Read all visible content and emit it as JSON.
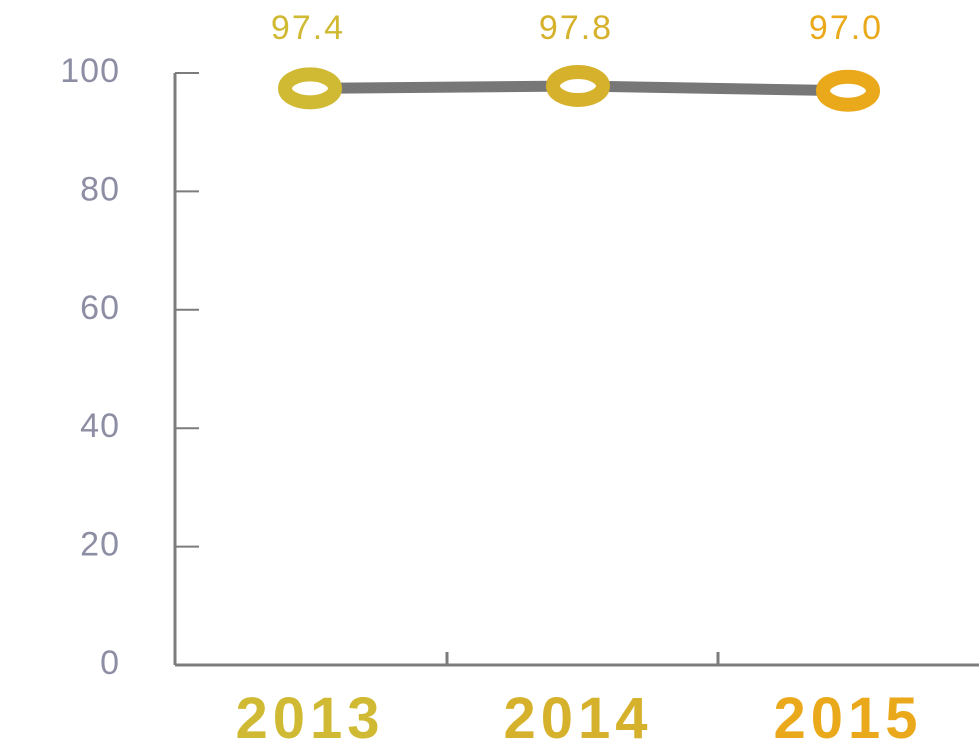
{
  "chart_data": {
    "type": "line",
    "categories": [
      "2013",
      "2014",
      "2015"
    ],
    "series": [
      {
        "values": [
          97.4,
          97.8,
          97.0
        ],
        "data_labels": [
          "97.4",
          "97.8",
          "97.0"
        ],
        "point_colors": [
          "#d0b933",
          "#d6b12c",
          "#eaa91b"
        ]
      }
    ],
    "y_ticks": [
      "0",
      "20",
      "40",
      "60",
      "80",
      "100"
    ],
    "ylim": [
      0,
      100
    ],
    "grid": false,
    "legend": "none",
    "title": "",
    "xlabel": "",
    "ylabel": "",
    "colors": {
      "axis": "#7c7c7c",
      "line": "#777777",
      "y_tick_text": "#8d8da3",
      "x_tick_text": [
        "#d0b933",
        "#d6b12c",
        "#eaa91b"
      ],
      "data_label_text": [
        "#d0b933",
        "#d6b12c",
        "#eaa91b"
      ],
      "marker_fill": "#ffffff"
    }
  }
}
